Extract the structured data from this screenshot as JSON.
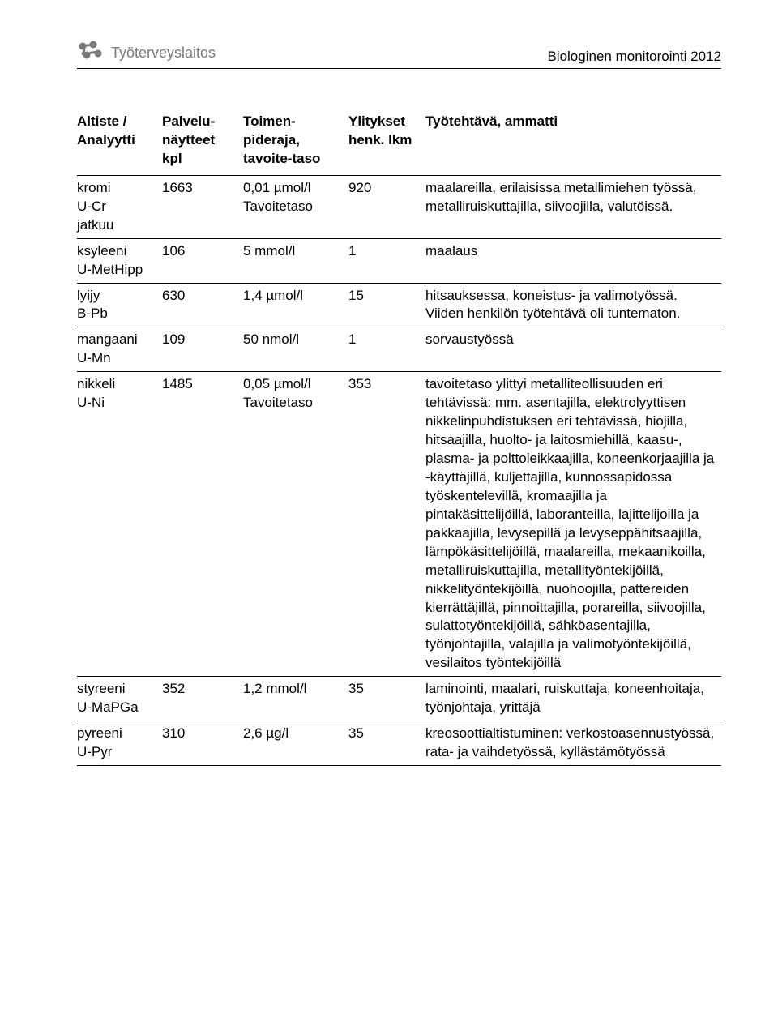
{
  "header": {
    "org_name": "Työterveyslaitos",
    "doc_title": "Biologinen monitorointi 2012",
    "logo_color": "#7a7a7a"
  },
  "table": {
    "columns": [
      "Altiste / Analyytti",
      "Palvelu-näytteet kpl",
      "Toimen-pideraja, tavoite-taso",
      "Ylitykset henk. lkm",
      "Työtehtävä, ammatti"
    ],
    "rows": [
      {
        "analyte": "kromi\nU-Cr\njatkuu",
        "samples": "1663",
        "limit": "0,01 µmol/l Tavoitetaso",
        "exceed": "920",
        "job": "maalareilla, erilaisissa metallimiehen työssä, metalliruiskuttajilla, siivoojilla, valutöissä."
      },
      {
        "analyte": "ksyleeni\nU-MetHipp",
        "samples": "106",
        "limit": "5 mmol/l",
        "exceed": "1",
        "job": "maalaus"
      },
      {
        "analyte": "lyijy\nB-Pb",
        "samples": "630",
        "limit": "1,4 µmol/l",
        "exceed": "15",
        "job": "hitsauksessa, koneistus- ja valimotyössä. Viiden henkilön työtehtävä oli tuntematon."
      },
      {
        "analyte": "mangaani\nU-Mn",
        "samples": "109",
        "limit": "50 nmol/l",
        "exceed": "1",
        "job": "sorvaustyössä"
      },
      {
        "analyte": "nikkeli\nU-Ni",
        "samples": "1485",
        "limit": "0,05 µmol/l Tavoitetaso",
        "exceed": "353",
        "job": "tavoitetaso ylittyi metalliteollisuuden eri tehtävissä: mm. asentajilla, elektrolyyttisen nikkelinpuhdistuksen eri tehtävissä, hiojilla, hitsaajilla, huolto- ja laitosmiehillä, kaasu-, plasma- ja polttoleikkaajilla, koneenkorjaajilla ja -käyttäjillä, kuljettajilla, kunnossapidossa työskentelevillä, kromaajilla ja pintakäsittelijöillä, laboranteilla, lajittelijoilla ja pakkaajilla, levysepillä ja levyseppähitsaajilla, lämpökäsittelijöillä, maalareilla, mekaanikoilla, metalliruiskuttajilla, metallityöntekijöillä, nikkelityöntekijöillä, nuohoojilla, pattereiden kierrättäjillä, pinnoittajilla, porareilla, siivoojilla, sulattotyöntekijöillä, sähköasentajilla, työnjohtajilla, valajilla ja valimotyöntekijöillä, vesilaitos työntekijöillä"
      },
      {
        "analyte": "styreeni\nU-MaPGa",
        "samples": "352",
        "limit": "1,2 mmol/l",
        "exceed": "35",
        "job": "laminointi, maalari, ruiskuttaja, koneenhoitaja, työnjohtaja, yrittäjä"
      },
      {
        "analyte": "pyreeni\nU-Pyr",
        "samples": "310",
        "limit": "2,6 µg/l",
        "exceed": "35",
        "job": "kreosoottialtistuminen: verkostoasennustyössä, rata- ja vaihdetyössä, kyllästämötyössä"
      }
    ]
  }
}
